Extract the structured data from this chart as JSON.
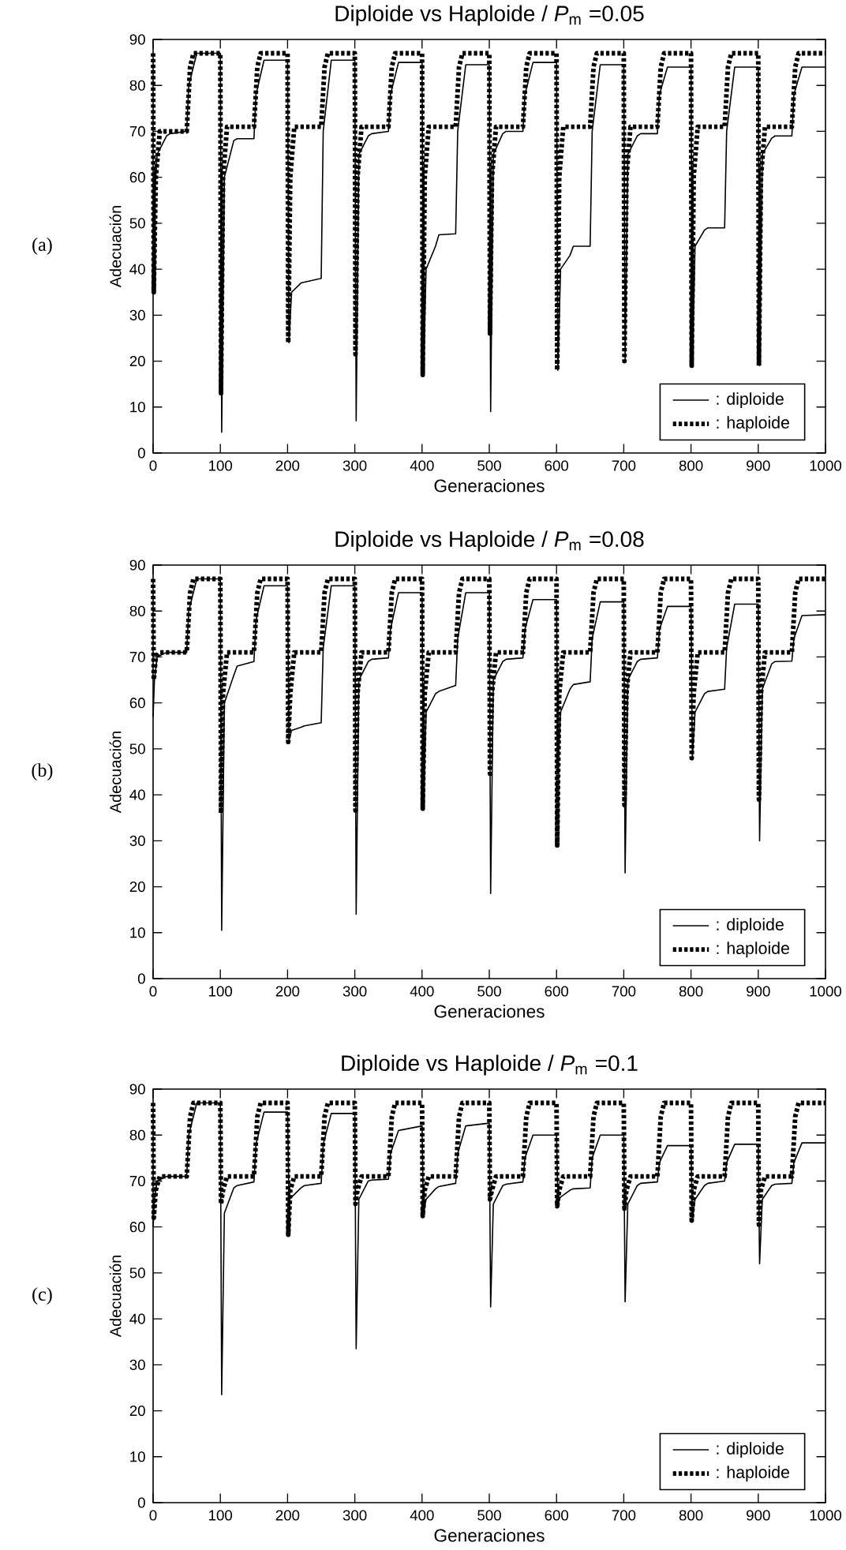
{
  "chart_data": [
    {
      "type": "line",
      "title": "Diploide vs Haploide / *P*$_{m}$ =0.05",
      "xlabel": "Generaciones",
      "ylabel": "Adecuación",
      "annotations": [
        "(a)"
      ],
      "xlim": [
        0,
        1000
      ],
      "ylim": [
        0,
        90
      ],
      "xticks": [
        0,
        100,
        200,
        300,
        400,
        500,
        600,
        700,
        800,
        900,
        1000
      ],
      "yticks": [
        0,
        10,
        20,
        30,
        40,
        50,
        60,
        70,
        80,
        90
      ],
      "legend": "bottom right",
      "series": [
        {
          "name": ": diploide",
          "color": "#000000",
          "line_style": "solid",
          "x": [
            0,
            2,
            6,
            20,
            25,
            50,
            53,
            65,
            100,
            102,
            106,
            120,
            125,
            150,
            153,
            165,
            200,
            202,
            206,
            220,
            225,
            250,
            253,
            265,
            300,
            302,
            306,
            320,
            325,
            350,
            353,
            365,
            400,
            402,
            406,
            420,
            425,
            450,
            453,
            465,
            500,
            502,
            506,
            520,
            525,
            550,
            553,
            565,
            600,
            602,
            606,
            620,
            625,
            650,
            653,
            665,
            700,
            702,
            706,
            720,
            725,
            750,
            753,
            765,
            800,
            802,
            806,
            820,
            825,
            850,
            853,
            865,
            900,
            902,
            906,
            920,
            925,
            950,
            953,
            965,
            1000
          ],
          "values": [
            35,
            55,
            65,
            69,
            69.5,
            70,
            80,
            87,
            87,
            4.5,
            60,
            68,
            68.4,
            68.4,
            78,
            85.5,
            85.5,
            24,
            35,
            37,
            37.2,
            38,
            70,
            85.5,
            85.5,
            7,
            65,
            69,
            69.5,
            70,
            78,
            85,
            85,
            17,
            40,
            45,
            47.5,
            47.7,
            70,
            84.5,
            84.5,
            9,
            65,
            69.5,
            70,
            70,
            78,
            85,
            85,
            18,
            40,
            43,
            45,
            45,
            70,
            84.5,
            84.5,
            20,
            65,
            69,
            69.5,
            69.5,
            78,
            84,
            84,
            19,
            45,
            48.5,
            49,
            49,
            70,
            84,
            84,
            19,
            65,
            68.5,
            69,
            69,
            78,
            84,
            84
          ]
        },
        {
          "name": ": haploide",
          "color": "#000000",
          "line_style": "dotted",
          "x": [
            0,
            1,
            4,
            10,
            50,
            55,
            60,
            100,
            101,
            104,
            110,
            150,
            155,
            160,
            200,
            201,
            204,
            210,
            250,
            255,
            260,
            300,
            301,
            304,
            310,
            350,
            355,
            360,
            400,
            401,
            404,
            410,
            450,
            455,
            460,
            500,
            501,
            504,
            510,
            550,
            555,
            560,
            600,
            601,
            604,
            610,
            650,
            655,
            660,
            700,
            701,
            704,
            710,
            750,
            755,
            760,
            800,
            801,
            804,
            810,
            850,
            855,
            860,
            900,
            901,
            904,
            910,
            950,
            955,
            960,
            1000
          ],
          "values": [
            87,
            35,
            60,
            70,
            70,
            84,
            87,
            87,
            13,
            60,
            71,
            71,
            84,
            87,
            87,
            24,
            60,
            71,
            71,
            84,
            87,
            87,
            21.5,
            60,
            71,
            71,
            84,
            87,
            87,
            17,
            60,
            71,
            71,
            84,
            87,
            87,
            26,
            60,
            71,
            71,
            84,
            87,
            87,
            18,
            60,
            71,
            71,
            84,
            87,
            87,
            20,
            60,
            71,
            71,
            84,
            87,
            87,
            19,
            60,
            71,
            71,
            84,
            87,
            87,
            19,
            60,
            71,
            71,
            84,
            87,
            87
          ]
        }
      ]
    },
    {
      "type": "line",
      "title": "Diploide vs Haploide / *P*$_{m}$ =0.08",
      "xlabel": "Generaciones",
      "ylabel": "Adecuación",
      "annotations": [
        "(b)"
      ],
      "xlim": [
        0,
        1000
      ],
      "ylim": [
        0,
        90
      ],
      "xticks": [
        0,
        100,
        200,
        300,
        400,
        500,
        600,
        700,
        800,
        900,
        1000
      ],
      "yticks": [
        0,
        10,
        20,
        30,
        40,
        50,
        60,
        70,
        80,
        90
      ],
      "legend": "bottom right",
      "series": [
        {
          "name": ": diploide",
          "color": "#000000",
          "line_style": "solid",
          "x": [
            0,
            2,
            6,
            20,
            25,
            50,
            53,
            65,
            100,
            102,
            106,
            120,
            125,
            150,
            153,
            165,
            200,
            202,
            206,
            220,
            225,
            250,
            253,
            265,
            300,
            302,
            306,
            320,
            325,
            350,
            353,
            365,
            400,
            402,
            406,
            420,
            425,
            450,
            453,
            465,
            500,
            502,
            506,
            520,
            525,
            550,
            553,
            565,
            600,
            602,
            606,
            620,
            625,
            650,
            653,
            665,
            700,
            702,
            706,
            720,
            725,
            750,
            753,
            765,
            800,
            802,
            806,
            820,
            825,
            850,
            853,
            865,
            900,
            902,
            906,
            920,
            925,
            950,
            953,
            965,
            1000
          ],
          "values": [
            57,
            65,
            70,
            71,
            71,
            71,
            80,
            87,
            87,
            10.5,
            60,
            66,
            68,
            69,
            78,
            85.5,
            85.5,
            52,
            54,
            54.7,
            55,
            55.7,
            72,
            85.5,
            85.5,
            14,
            65,
            69,
            69.5,
            69.8,
            76,
            84,
            84,
            37,
            58,
            62,
            62.5,
            63.8,
            74,
            84,
            84,
            18.5,
            65,
            69,
            69.5,
            69.8,
            76,
            82.5,
            82.5,
            45,
            58,
            63,
            64,
            64.6,
            74,
            82,
            82,
            23,
            65,
            69,
            69.5,
            69.8,
            76,
            81,
            81,
            48,
            58,
            62,
            62.5,
            63,
            72,
            81.5,
            81.5,
            30,
            63,
            68.5,
            69,
            69.1,
            74,
            79,
            79.2
          ]
        },
        {
          "name": ": haploide",
          "color": "#000000",
          "line_style": "dotted",
          "x": [
            0,
            1,
            4,
            10,
            50,
            55,
            60,
            100,
            101,
            104,
            110,
            150,
            155,
            160,
            200,
            201,
            204,
            210,
            250,
            255,
            260,
            300,
            301,
            304,
            310,
            350,
            355,
            360,
            400,
            401,
            404,
            410,
            450,
            455,
            460,
            500,
            501,
            504,
            510,
            550,
            555,
            560,
            600,
            601,
            604,
            610,
            650,
            655,
            660,
            700,
            701,
            704,
            710,
            750,
            755,
            760,
            800,
            801,
            804,
            810,
            850,
            855,
            860,
            900,
            901,
            904,
            910,
            950,
            955,
            960,
            1000
          ],
          "values": [
            87,
            65,
            70,
            71,
            71,
            84,
            87,
            87,
            36,
            62,
            71,
            71,
            84,
            87,
            87,
            51.5,
            62,
            71,
            71,
            84,
            87,
            87,
            36.6,
            62,
            71,
            71,
            84,
            87,
            87,
            37,
            62,
            71,
            71,
            84,
            87,
            87,
            44.6,
            62,
            71,
            71,
            84,
            87,
            87,
            29,
            62,
            71,
            71,
            84,
            87,
            87,
            37.8,
            62,
            71,
            71,
            84,
            87,
            87,
            48,
            62,
            71,
            71,
            84,
            87,
            87,
            39,
            62,
            71,
            71,
            84,
            87,
            87
          ]
        }
      ]
    },
    {
      "type": "line",
      "title": "Diploide vs Haploide / *P*$_{m}$ =0.1",
      "xlabel": "Generaciones",
      "ylabel": "Adecuación",
      "annotations": [
        "(c)"
      ],
      "xlim": [
        0,
        1000
      ],
      "ylim": [
        0,
        90
      ],
      "xticks": [
        0,
        100,
        200,
        300,
        400,
        500,
        600,
        700,
        800,
        900,
        1000
      ],
      "yticks": [
        0,
        10,
        20,
        30,
        40,
        50,
        60,
        70,
        80,
        90
      ],
      "legend": "bottom right",
      "series": [
        {
          "name": ": diploide",
          "color": "#000000",
          "line_style": "solid",
          "x": [
            0,
            2,
            6,
            20,
            25,
            50,
            53,
            65,
            100,
            102,
            106,
            120,
            125,
            150,
            153,
            165,
            200,
            202,
            206,
            220,
            225,
            250,
            253,
            265,
            300,
            302,
            306,
            320,
            325,
            350,
            353,
            365,
            400,
            402,
            406,
            420,
            425,
            450,
            453,
            465,
            500,
            502,
            506,
            520,
            525,
            550,
            553,
            565,
            600,
            602,
            606,
            620,
            625,
            650,
            653,
            665,
            700,
            702,
            706,
            720,
            725,
            750,
            753,
            765,
            800,
            802,
            806,
            820,
            825,
            850,
            853,
            865,
            900,
            902,
            906,
            920,
            925,
            950,
            953,
            965,
            1000
          ],
          "values": [
            60,
            66,
            70,
            71,
            71,
            71,
            80,
            87,
            87,
            23.5,
            63,
            68.5,
            69,
            69.8,
            78,
            85,
            85,
            66,
            66.5,
            68.5,
            69,
            69.5,
            78,
            84.7,
            84.7,
            33.5,
            66,
            70,
            70.2,
            70.4,
            76,
            81,
            82,
            63,
            66,
            68.3,
            68.8,
            69.5,
            76,
            82,
            82.6,
            42.6,
            65,
            69,
            69.3,
            69.8,
            75,
            80,
            80,
            66,
            66.5,
            68,
            68.3,
            68.5,
            75,
            80,
            80,
            43.7,
            65,
            69,
            69.5,
            69.8,
            74,
            77.7,
            77.7,
            62,
            66,
            69,
            69.5,
            70,
            74,
            78,
            78,
            52,
            66,
            69,
            69.3,
            69.5,
            74,
            78.3,
            78.3
          ]
        },
        {
          "name": ": haploide",
          "color": "#000000",
          "line_style": "dotted",
          "x": [
            0,
            1,
            4,
            10,
            50,
            55,
            60,
            100,
            101,
            104,
            110,
            150,
            155,
            160,
            200,
            201,
            204,
            210,
            250,
            255,
            260,
            300,
            301,
            304,
            310,
            350,
            355,
            360,
            400,
            401,
            404,
            410,
            450,
            455,
            460,
            500,
            501,
            504,
            510,
            550,
            555,
            560,
            600,
            601,
            604,
            610,
            650,
            655,
            660,
            700,
            701,
            704,
            710,
            750,
            755,
            760,
            800,
            801,
            804,
            810,
            850,
            855,
            860,
            900,
            901,
            904,
            910,
            950,
            955,
            960,
            1000
          ],
          "values": [
            87,
            62,
            68,
            71,
            71,
            84,
            87,
            87,
            65,
            68,
            71,
            71,
            84,
            87,
            87,
            58.3,
            68,
            71,
            71,
            84,
            87,
            87,
            65,
            68,
            71,
            71,
            84,
            87,
            87,
            62.4,
            68,
            71,
            71,
            84,
            87,
            87,
            66,
            68,
            71,
            71,
            84,
            87,
            87,
            64.5,
            68,
            71,
            71,
            84,
            87,
            87,
            64,
            68,
            71,
            71,
            84,
            87,
            87,
            61.4,
            68,
            71,
            71,
            84,
            87,
            87,
            60.5,
            68,
            71,
            71,
            84,
            87,
            87
          ]
        }
      ]
    }
  ]
}
